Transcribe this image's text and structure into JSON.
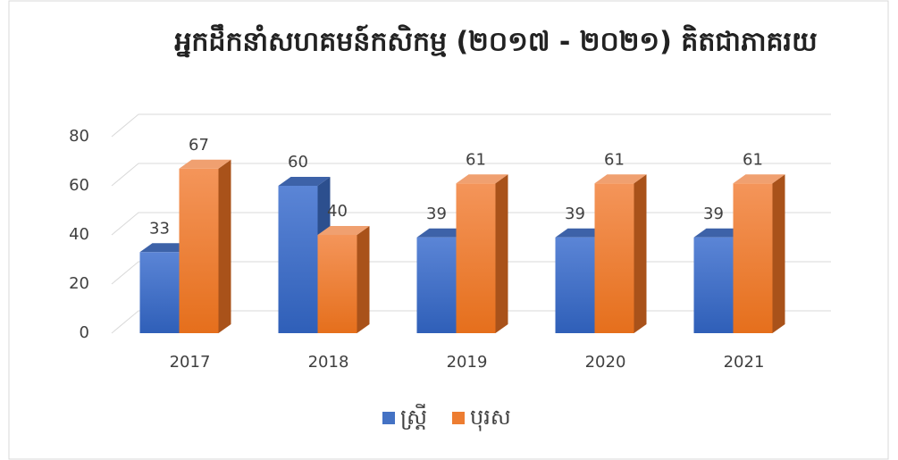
{
  "chart_data": {
    "type": "bar3d",
    "title": "អ្នកដឹកនាំសហគមន៍កសិកម្ម (២០១៧ - ២០២១) គិតជាភាគរយ",
    "categories": [
      "2017",
      "2018",
      "2019",
      "2020",
      "2021"
    ],
    "series": [
      {
        "name": "ស្ត្រី",
        "color": "#4472c4",
        "values": [
          33,
          60,
          39,
          39,
          39
        ]
      },
      {
        "name": "បុរស",
        "color": "#ed7d31",
        "values": [
          67,
          40,
          61,
          61,
          61
        ]
      }
    ],
    "ylim": [
      0,
      80
    ],
    "yticks": [
      0,
      20,
      40,
      60,
      80
    ],
    "grid": true,
    "legend": "bottom"
  }
}
